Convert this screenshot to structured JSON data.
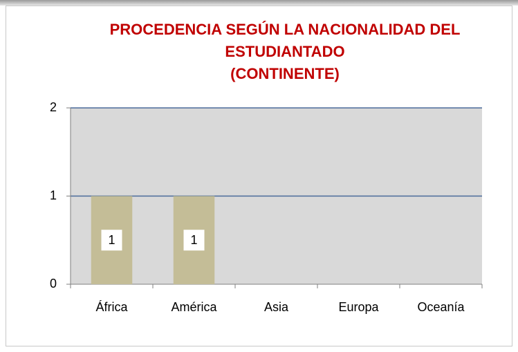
{
  "chart_data": {
    "type": "bar",
    "title": [
      "PROCEDENCIA SEGÚN LA NACIONALIDAD DEL",
      "ESTUDIANTADO",
      "(CONTINENTE)"
    ],
    "categories": [
      "África",
      "América",
      "Asia",
      "Europa",
      "Oceanía"
    ],
    "values": [
      1,
      1,
      0,
      0,
      0
    ],
    "value_labels": [
      "1",
      "1",
      null,
      null,
      null
    ],
    "color": "#c4bd97",
    "ylim": [
      0,
      2
    ],
    "yticks": [
      0,
      1,
      2
    ],
    "grid": true
  }
}
